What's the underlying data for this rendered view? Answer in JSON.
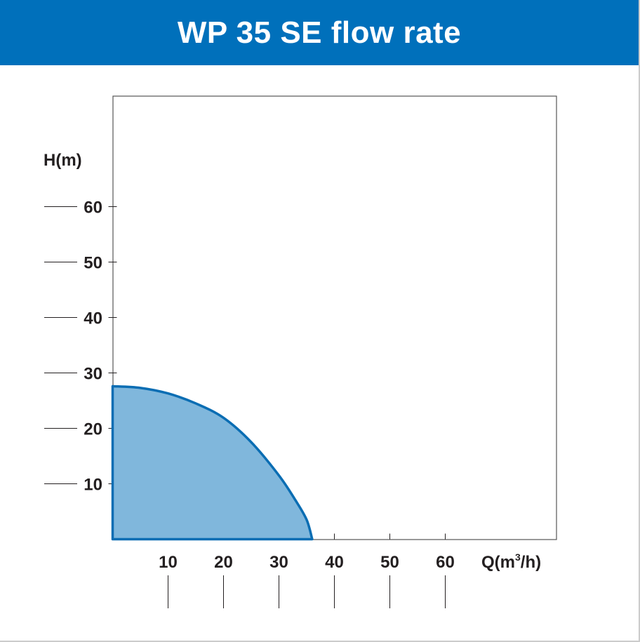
{
  "header": {
    "title": "WP 35 SE flow rate",
    "background": "#0070bb"
  },
  "chart_data": {
    "type": "area",
    "title": "WP 35 SE flow rate",
    "xlabel": "Q(m³/h)",
    "xlabel_base": "Q(m",
    "xlabel_sup": "3",
    "xlabel_tail": "/h)",
    "ylabel": "H(m)",
    "xlim": [
      0,
      80
    ],
    "ylim": [
      0,
      80
    ],
    "xticks": [
      10,
      20,
      30,
      40,
      50,
      60
    ],
    "yticks": [
      10,
      20,
      30,
      40,
      50,
      60
    ],
    "xtick_labels": [
      "10",
      "20",
      "30",
      "40",
      "50",
      "60"
    ],
    "ytick_labels": [
      "10",
      "20",
      "30",
      "40",
      "50",
      "60"
    ],
    "grid": false,
    "series": [
      {
        "x": [
          0,
          5,
          10,
          15,
          20,
          25,
          30,
          33,
          35,
          36
        ],
        "y": [
          27.6,
          27.3,
          26.3,
          24.5,
          21.9,
          17.5,
          11.5,
          7,
          3.5,
          0
        ],
        "fill": "#80b7dc",
        "stroke": "#0a6db3"
      }
    ]
  }
}
